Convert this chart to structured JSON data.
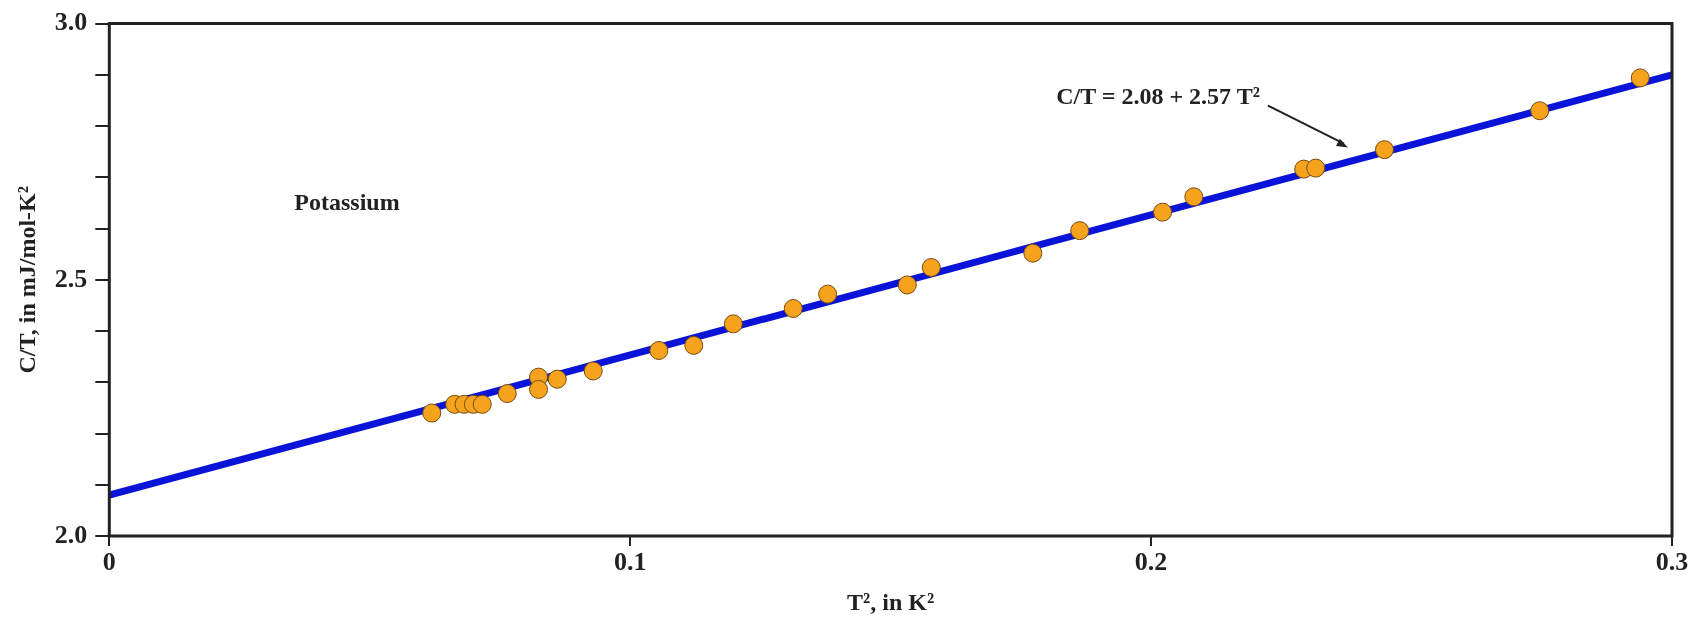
{
  "chart_data": {
    "type": "scatter",
    "xlabel": "T², in K²",
    "ylabel": "C/T, in mJ/mol-K²",
    "series": [
      {
        "marker": "circle",
        "color": "#f5a21c",
        "x": [
          0.0619,
          0.0663,
          0.0681,
          0.0699,
          0.0716,
          0.0764,
          0.0824,
          0.0824,
          0.086,
          0.0929,
          0.1055,
          0.1122,
          0.1198,
          0.1313,
          0.1379,
          0.1532,
          0.1578,
          0.1773,
          0.1863,
          0.2022,
          0.2082,
          0.2293,
          0.2316,
          0.2448,
          0.2746,
          0.2939
        ],
        "values": [
          2.24,
          2.257,
          2.257,
          2.257,
          2.257,
          2.278,
          2.31,
          2.286,
          2.306,
          2.322,
          2.362,
          2.372,
          2.414,
          2.444,
          2.472,
          2.49,
          2.524,
          2.552,
          2.596,
          2.632,
          2.662,
          2.716,
          2.718,
          2.754,
          2.83,
          2.894
        ]
      },
      {
        "type": "line",
        "color": "#0a14d8",
        "x": [
          0,
          0.3
        ],
        "values": [
          2.08,
          2.9
        ]
      }
    ],
    "xlim": [
      0,
      0.3
    ],
    "xticks": [
      0,
      0.1,
      0.2,
      0.3
    ],
    "ylim": [
      2.0,
      3.0
    ],
    "yticks": [
      {
        "value": 2,
        "label": "2.0"
      },
      {
        "value": 2.1,
        "label": null
      },
      {
        "value": 2.2,
        "label": null
      },
      {
        "value": 2.3,
        "label": null
      },
      {
        "value": 2.4,
        "label": null
      },
      2.5,
      {
        "value": 2.6,
        "label": null
      },
      {
        "value": 2.7,
        "label": null
      },
      {
        "value": 2.8,
        "label": null
      },
      {
        "value": 2.9,
        "label": null
      },
      {
        "value": 3,
        "label": "3.0"
      }
    ],
    "grid": false,
    "legend": false,
    "annotations": [
      "C/T = 2.08 + 2.57 T²",
      "Potassium"
    ]
  }
}
